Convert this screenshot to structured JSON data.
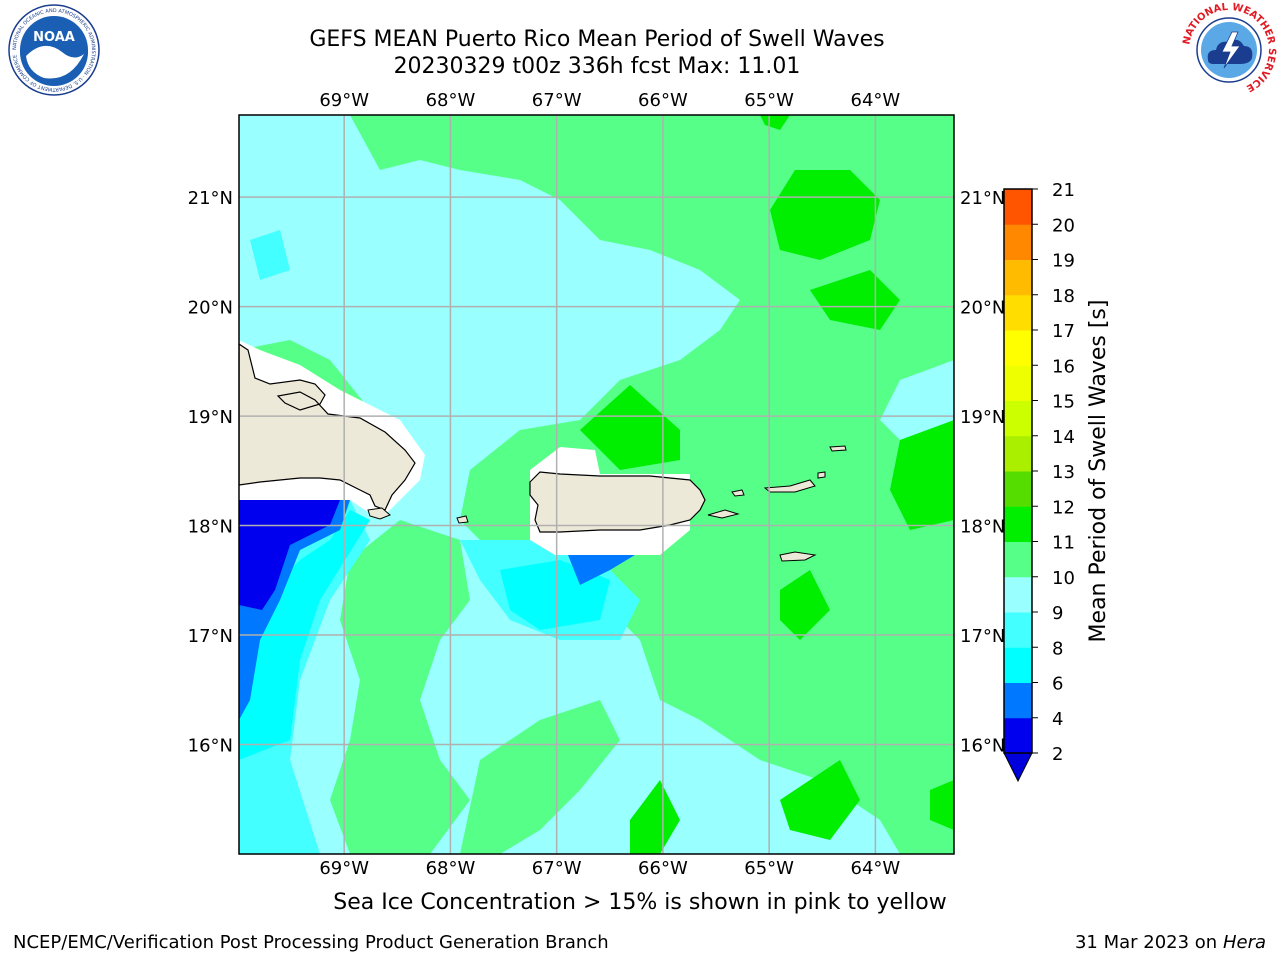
{
  "header": {
    "title_line1": "GEFS MEAN Puerto Rico Mean Period of Swell Waves",
    "title_line2": "20230329 t00z 336h fcst   Max: 11.01"
  },
  "logos": {
    "noaa": {
      "icon": "noaa-logo",
      "text": "NOAA",
      "ring_text": "NATIONAL OCEANIC AND ATMOSPHERIC ADMINISTRATION · U.S. DEPARTMENT OF COMMERCE"
    },
    "nws": {
      "icon": "nws-logo",
      "ring_text": "NATIONAL WEATHER SERVICE"
    }
  },
  "map": {
    "lon_ticks": [
      "69°W",
      "68°W",
      "67°W",
      "66°W",
      "65°W",
      "64°W"
    ],
    "lat_ticks": [
      "21°N",
      "20°N",
      "19°N",
      "18°N",
      "17°N",
      "16°N"
    ],
    "extent": {
      "lon_min": -69.99,
      "lon_max": -63.26,
      "lat_min": 15.0,
      "lat_max": 21.75
    },
    "land_color": "#ede9d8",
    "grid_color": "#b0b0b0"
  },
  "colorbar": {
    "label": "Mean Period of Swell Waves [s]",
    "ticks": [
      "21",
      "20",
      "19",
      "18",
      "17",
      "16",
      "15",
      "14",
      "13",
      "12",
      "11",
      "10",
      "9",
      "8",
      "6",
      "4",
      "2"
    ],
    "levels": [
      2,
      4,
      6,
      8,
      9,
      10,
      11,
      12,
      13,
      14,
      15,
      16,
      17,
      18,
      19,
      20,
      21
    ],
    "colors": [
      "#0000ee",
      "#0078ff",
      "#00ffff",
      "#44ffff",
      "#99ffff",
      "#55ff88",
      "#00ee00",
      "#55dd00",
      "#aaee00",
      "#ccff00",
      "#eeff00",
      "#ffff00",
      "#ffdd00",
      "#ffbb00",
      "#ff8800",
      "#ff5500",
      "#ff0000"
    ],
    "under_color": "#0000dd"
  },
  "footer": {
    "note": "Sea Ice Concentration > 15% is shown in pink to yellow",
    "credit_left": "NCEP/EMC/Verification Post Processing Product Generation Branch",
    "credit_right_date": "31 Mar 2023 on",
    "credit_right_host": "Hera"
  }
}
